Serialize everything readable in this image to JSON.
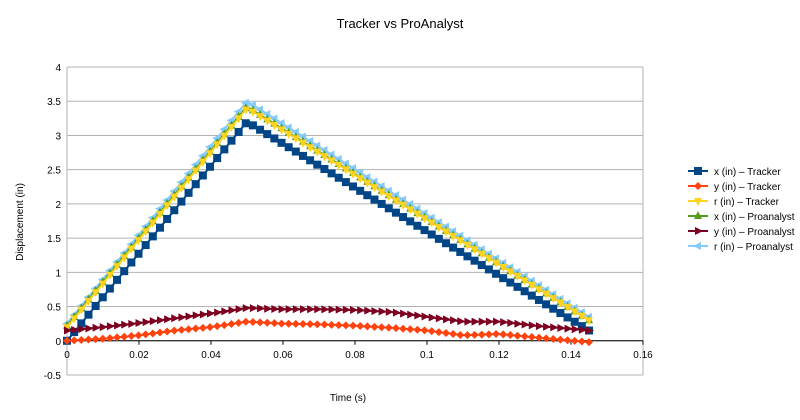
{
  "chart_data": {
    "type": "scatter",
    "title": "Tracker vs ProAnalyst",
    "xlabel": "Time (s)",
    "ylabel": "Displacement (in)",
    "xlim": [
      0,
      0.16
    ],
    "ylim": [
      -0.5,
      4
    ],
    "x_ticks": [
      "0",
      "0.02",
      "0.04",
      "0.06",
      "0.08",
      "0.1",
      "0.12",
      "0.14",
      "0.16"
    ],
    "y_ticks": [
      "-0.5",
      "0",
      "0.5",
      "1",
      "1.5",
      "2",
      "2.5",
      "3",
      "3.5",
      "4"
    ],
    "grid": "horizontal",
    "legend_position": "right",
    "series": [
      {
        "name": "x (in) – Tracker",
        "color": "#004586",
        "marker": "square",
        "x": [
          0,
          0.05,
          0.145
        ],
        "y": [
          0.0,
          3.2,
          0.15
        ]
      },
      {
        "name": "y (in) – Tracker",
        "color": "#ff420e",
        "marker": "diamond",
        "x": [
          0,
          0.01,
          0.02,
          0.03,
          0.04,
          0.05,
          0.06,
          0.07,
          0.08,
          0.09,
          0.1,
          0.11,
          0.12,
          0.13,
          0.145
        ],
        "y": [
          0.0,
          0.03,
          0.08,
          0.15,
          0.2,
          0.28,
          0.25,
          0.24,
          0.22,
          0.19,
          0.15,
          0.08,
          0.1,
          0.05,
          -0.02
        ]
      },
      {
        "name": "r (in) – Tracker",
        "color": "#ffd320",
        "marker": "triangle-down",
        "x": [
          0,
          0.05,
          0.145
        ],
        "y": [
          0.2,
          3.4,
          0.3
        ]
      },
      {
        "name": "x (in) – Proanalyst",
        "color": "#579d1c",
        "marker": "triangle-up",
        "x": [
          0,
          0.05,
          0.145
        ],
        "y": [
          0.22,
          3.42,
          0.3
        ]
      },
      {
        "name": "y (in) – Proanalyst",
        "color": "#7e0021",
        "marker": "triangle-right",
        "x": [
          0,
          0.01,
          0.02,
          0.03,
          0.04,
          0.05,
          0.06,
          0.07,
          0.08,
          0.09,
          0.1,
          0.11,
          0.12,
          0.13,
          0.145
        ],
        "y": [
          0.15,
          0.2,
          0.26,
          0.33,
          0.4,
          0.48,
          0.46,
          0.46,
          0.45,
          0.42,
          0.35,
          0.28,
          0.28,
          0.22,
          0.15
        ]
      },
      {
        "name": "r (in) – Proanalyst",
        "color": "#83caff",
        "marker": "triangle-left",
        "x": [
          0,
          0.05,
          0.145
        ],
        "y": [
          0.25,
          3.5,
          0.35
        ]
      }
    ]
  }
}
